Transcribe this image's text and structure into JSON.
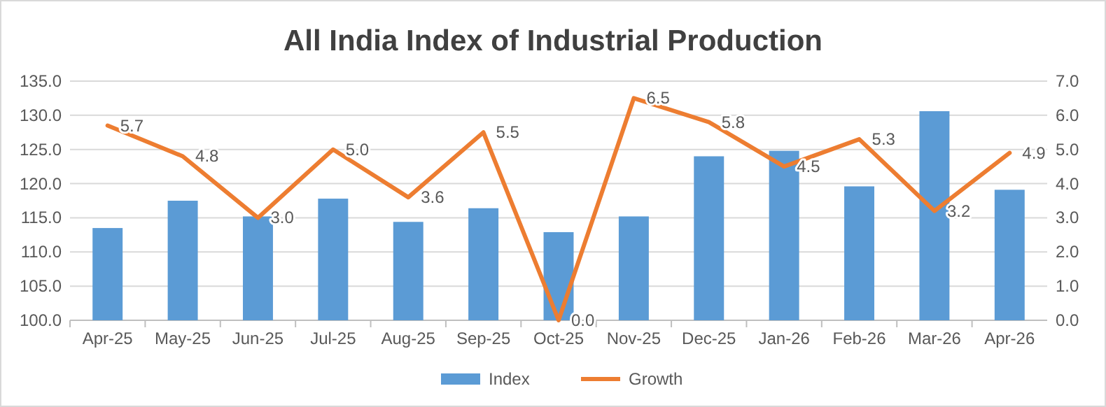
{
  "chart_data": {
    "type": "bar",
    "title": "All India Index of Industrial Production",
    "categories": [
      "Apr-25",
      "May-25",
      "Jun-25",
      "Jul-25",
      "Aug-25",
      "Sep-25",
      "Oct-25",
      "Nov-25",
      "Dec-25",
      "Jan-26",
      "Feb-26",
      "Mar-26",
      "Apr-26"
    ],
    "series": [
      {
        "name": "Index",
        "color": "#5b9bd5",
        "values": [
          113.5,
          117.5,
          115.2,
          117.8,
          114.4,
          116.4,
          112.9,
          115.2,
          124.0,
          124.8,
          119.6,
          130.6,
          119.1
        ]
      },
      {
        "name": "Growth",
        "type": "line",
        "axis": "y2",
        "color": "#ed7d31",
        "values": [
          5.7,
          4.8,
          3.0,
          5.0,
          3.6,
          5.5,
          0.0,
          6.5,
          5.8,
          4.5,
          5.3,
          3.2,
          4.9
        ],
        "value_labels": [
          "5.7",
          "4.8",
          "3.0",
          "5.0",
          "3.6",
          "5.5",
          "0.0",
          "6.5",
          "5.8",
          "4.5",
          "5.3",
          "3.2",
          "4.9"
        ]
      }
    ],
    "ylim": [
      100,
      135
    ],
    "yticks": [
      {
        "value": 100,
        "label": "100.0"
      },
      {
        "value": 105,
        "label": "105.0"
      },
      {
        "value": 110,
        "label": "110.0"
      },
      {
        "value": 115,
        "label": "115.0"
      },
      {
        "value": 120,
        "label": "120.0"
      },
      {
        "value": 125,
        "label": "125.0"
      },
      {
        "value": 130,
        "label": "130.0"
      },
      {
        "value": 135,
        "label": "135.0"
      }
    ],
    "y2lim": [
      0,
      7
    ],
    "y2ticks": [
      {
        "value": 0,
        "label": "0.0"
      },
      {
        "value": 1,
        "label": "1.0"
      },
      {
        "value": 2,
        "label": "2.0"
      },
      {
        "value": 3,
        "label": "3.0"
      },
      {
        "value": 4,
        "label": "4.0"
      },
      {
        "value": 5,
        "label": "5.0"
      },
      {
        "value": 6,
        "label": "6.0"
      },
      {
        "value": 7,
        "label": "7.0"
      }
    ],
    "grid": "y",
    "legend": "bottom"
  }
}
